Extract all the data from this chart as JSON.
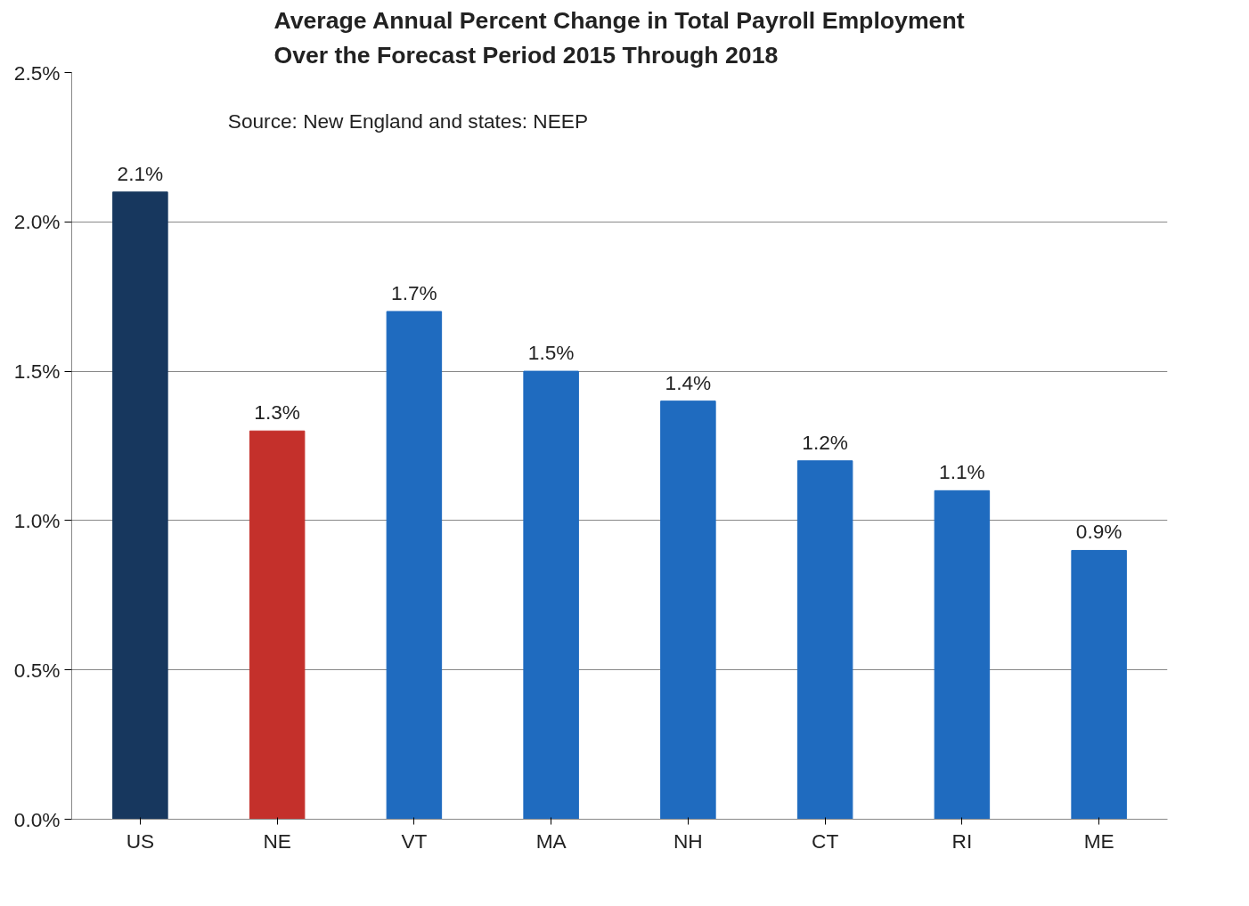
{
  "chart_data": {
    "type": "bar",
    "title": "Average Annual Percent Change in Total Payroll Employment Over the Forecast Period 2015 Through 2018",
    "annotations": [
      "Source: New England and states: NEEP"
    ],
    "categories": [
      "US",
      "NE",
      "VT",
      "MA",
      "NH",
      "CT",
      "RI",
      "ME"
    ],
    "values": [
      2.1,
      1.3,
      1.7,
      1.5,
      1.4,
      1.2,
      1.1,
      0.9
    ],
    "colors": [
      "#17375e",
      "#c4302b",
      "#1f6bbf",
      "#1f6bbf",
      "#1f6bbf",
      "#1f6bbf",
      "#1f6bbf",
      "#1f6bbf"
    ],
    "ylim": [
      0,
      2.5
    ],
    "yticks": [
      {
        "value": 0,
        "label": "0.0%"
      },
      {
        "value": 0.5,
        "label": "0.5%"
      },
      {
        "value": 1,
        "label": "1.0%"
      },
      {
        "value": 1.5,
        "label": "1.5%"
      },
      {
        "value": 2,
        "label": "2.0%"
      },
      {
        "value": 2.5,
        "label": "2.5%"
      }
    ],
    "value_labels": [
      "2.1%",
      "1.3%",
      "1.7%",
      "1.5%",
      "1.4%",
      "1.2%",
      "1.1%",
      "0.9%"
    ],
    "grid": "y"
  }
}
